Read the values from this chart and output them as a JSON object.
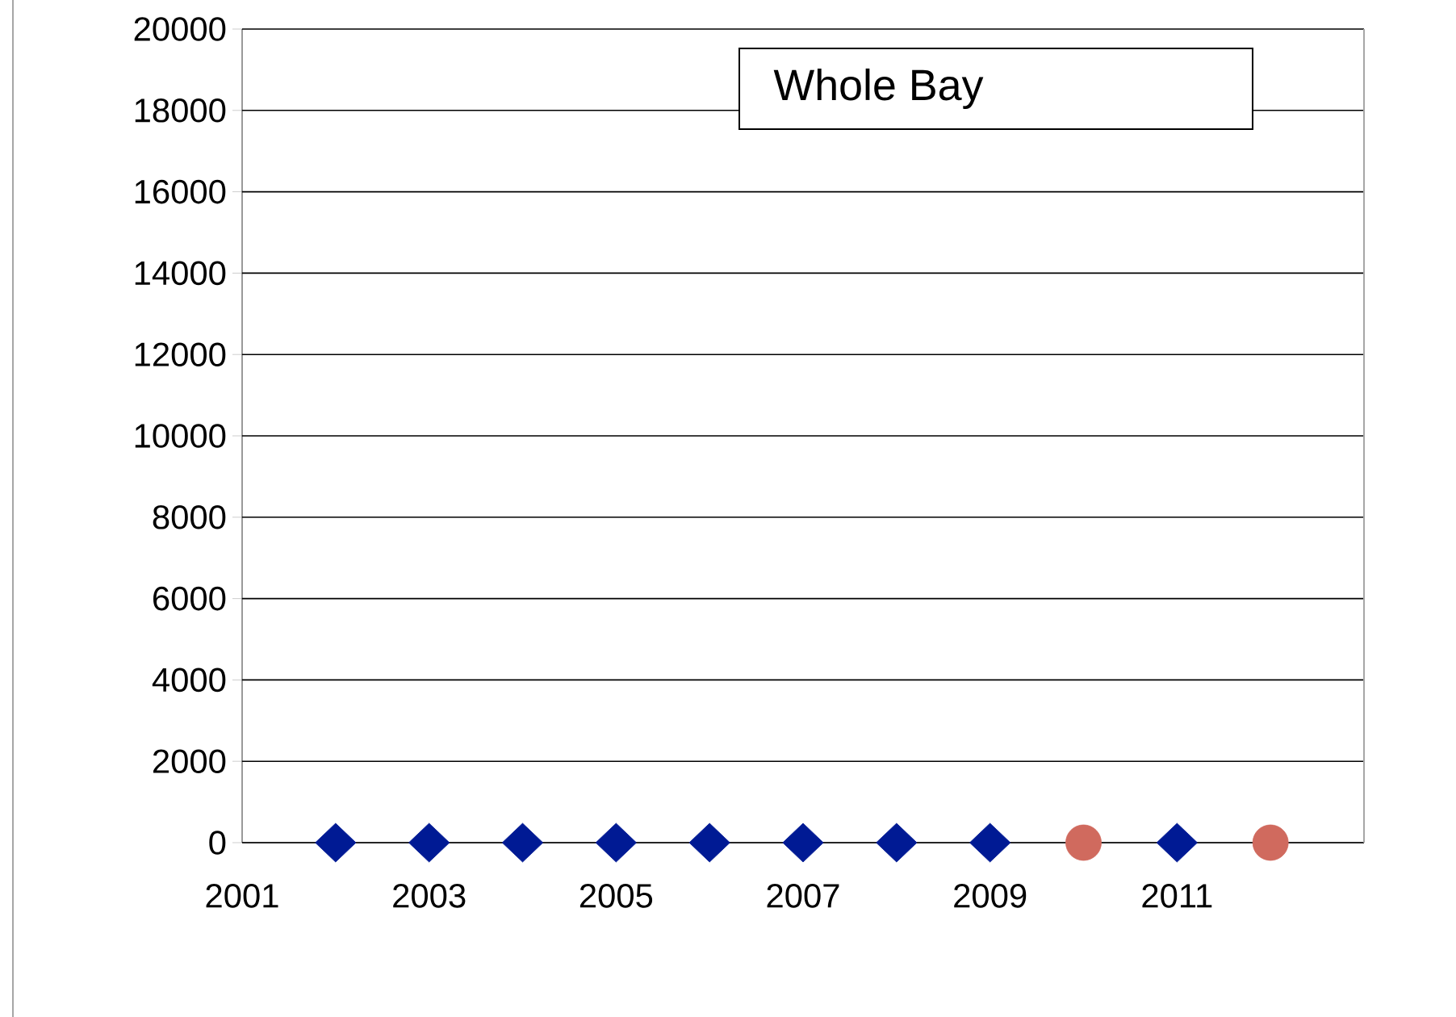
{
  "chart_data": {
    "type": "scatter",
    "title": "Whole Bay",
    "series": [
      {
        "x": [
          2002,
          2003,
          2004,
          2005,
          2006,
          2007,
          2008,
          2009,
          2011
        ],
        "values": [
          0,
          0,
          0,
          0,
          0,
          0,
          0,
          0,
          0
        ],
        "color": "#001a94",
        "marker": "diamond"
      },
      {
        "x": [
          2010,
          2012
        ],
        "values": [
          0,
          0
        ],
        "color": "#d06a5e",
        "marker": "circle"
      }
    ],
    "xlim": [
      2001,
      2013
    ],
    "xticks": [
      2001,
      2003,
      2005,
      2007,
      2009,
      2011
    ],
    "ylim": [
      0,
      20000
    ],
    "yticks": [
      0,
      2000,
      4000,
      6000,
      8000,
      10000,
      12000,
      14000,
      16000,
      18000,
      20000
    ],
    "grid": "y"
  }
}
